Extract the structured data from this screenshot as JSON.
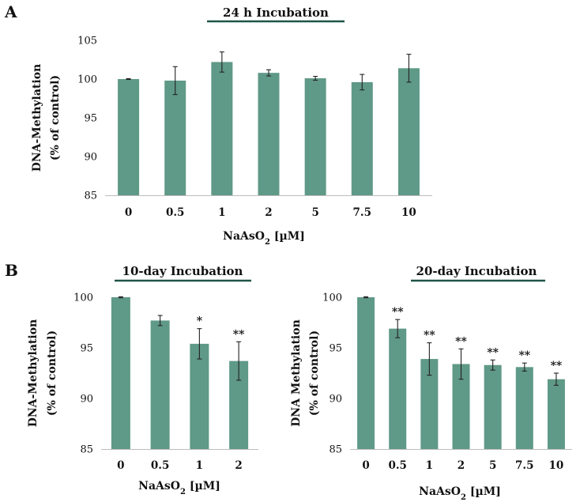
{
  "panels": [
    {
      "letter": "A"
    },
    {
      "letter": "B"
    }
  ],
  "colors": {
    "bar": "#5f9987",
    "title_rule": "#1f5548",
    "axis": "#bdbdbd",
    "error": "#222222"
  },
  "chart_data": [
    {
      "type": "bar",
      "panel": "A",
      "title": "24 h Incubation",
      "ylabel": "DNA-Methylation",
      "ylabel2": "(% of control)",
      "xlabel": {
        "text": "NaAsO",
        "sub": "2",
        "unit": " [µM]"
      },
      "ylim": [
        85,
        105
      ],
      "yticks": [
        85,
        90,
        95,
        100,
        105
      ],
      "categories": [
        "0",
        "0.5",
        "1",
        "2",
        "5",
        "7.5",
        "10"
      ],
      "values": [
        100.0,
        99.8,
        102.2,
        100.8,
        100.1,
        99.6,
        101.4
      ],
      "errors": [
        0.05,
        1.8,
        1.3,
        0.4,
        0.25,
        1.0,
        1.8
      ],
      "significance": [
        "",
        "",
        "",
        "",
        "",
        "",
        ""
      ]
    },
    {
      "type": "bar",
      "panel": "B",
      "title": "10-day Incubation",
      "ylabel": "DNA-Methylation",
      "ylabel2": "(% of control)",
      "xlabel": {
        "text": "NaAsO",
        "sub": "2",
        "unit": " [µM]"
      },
      "ylim": [
        85,
        100
      ],
      "yticks": [
        85,
        90,
        95,
        100
      ],
      "categories": [
        "0",
        "0.5",
        "1",
        "2"
      ],
      "values": [
        100.0,
        97.7,
        95.4,
        93.7
      ],
      "errors": [
        0.05,
        0.5,
        1.5,
        1.9
      ],
      "significance": [
        "",
        "",
        "*",
        "**"
      ]
    },
    {
      "type": "bar",
      "panel": "B",
      "title": "20-day Incubation",
      "ylabel": "DNA Methylation",
      "ylabel2": "(% of control)",
      "xlabel": {
        "text": "NaAsO",
        "sub": "2",
        "unit": " [µM]"
      },
      "ylim": [
        85,
        100
      ],
      "yticks": [
        85,
        90,
        95,
        100
      ],
      "categories": [
        "0",
        "0.5",
        "1",
        "2",
        "5",
        "7.5",
        "10"
      ],
      "values": [
        100.0,
        96.9,
        93.9,
        93.4,
        93.3,
        93.1,
        91.9
      ],
      "errors": [
        0.05,
        0.9,
        1.6,
        1.5,
        0.5,
        0.4,
        0.6
      ],
      "significance": [
        "",
        "**",
        "**",
        "**",
        "**",
        "**",
        "**"
      ]
    }
  ]
}
